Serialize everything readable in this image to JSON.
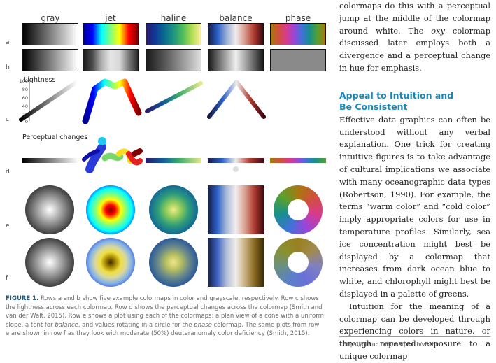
{
  "figure": {
    "columns": [
      "gray",
      "jet",
      "haline",
      "balance",
      "phase"
    ],
    "row_labels": [
      "a",
      "b",
      "c",
      "d",
      "e",
      "f"
    ],
    "lightness_label": "Lightness",
    "lightness_ticks": [
      "100",
      "80",
      "60",
      "40",
      "20",
      "0"
    ],
    "perceptual_label": "Perceptual changes",
    "caption": {
      "label": "FIGURE 1.",
      "p1": " Rows a and b show five example colormaps in color and grayscale, respectively. Row c shows the lightness across each colormap. Row d shows the perceptual changes across the colormap (Smith and van der Walt, 2015). Row e shows a plot using each of the colormaps: a plan view of a cone with a uniform slope, a tent for ",
      "em1": "balance",
      "p2": ", and values rotating in a circle for the ",
      "em2": "phase",
      "p3": " colormap. The same plots from row e are shown in row f as they look with moderate (50%) deuteranomaly color deficiency (Smith, 2015)."
    }
  },
  "text": {
    "para1_a": "colormaps do this with a perceptual jump at the middle of the colormap around white. The ",
    "para1_em": "oxy",
    "para1_b": " colormap discussed later employs both a divergence and a perceptual change in hue for emphasis.",
    "heading_line1": "Appeal to Intuition and",
    "heading_line2": "Be Consistent",
    "para2": "Effective data graphics can often be understood without any verbal explanation. One trick for creating intuitive figures is to take advantage of cultural implications we associate with many oceanographic data types (Robertson, 1990). For example, the terms “warm color” and “cold color” imply appropriate colors for use in temperature profiles. Similarly, sea ice concentration might best be displayed by a colormap that increases from dark ocean blue to white, and chlorophyll might best be displayed in a palette of greens.",
    "para3": "Intuition for the meaning of a colormap can be developed through experiencing colors in nature, or through repeated exposure to a unique colormap",
    "footnote": "¹ https://github.com/matplotlib/viscm"
  },
  "colors": {
    "heading": "#1a87b8",
    "caption_label": "#1a5a7a"
  }
}
